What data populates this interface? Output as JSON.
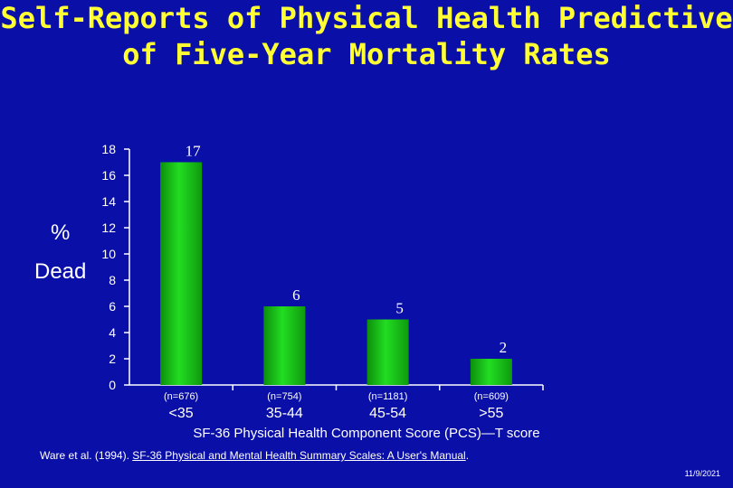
{
  "title": {
    "line1": "Self-Reports of Physical Health Predictive",
    "line2": "of Five-Year Mortality Rates"
  },
  "y_axis_label": {
    "line1": "%",
    "line2": "Dead"
  },
  "citation": {
    "prefix": "Ware et al.  (1994).  ",
    "book": "SF-36 Physical and Mental Health Summary Scales: A User's Manual",
    "suffix": "."
  },
  "date": "11/9/2021",
  "colors": {
    "background": "#0a0fa8",
    "title": "#ffff33",
    "bar": "#22dd22",
    "text": "#ffffff"
  },
  "chart_data": {
    "type": "bar",
    "title": "Self-Reports of Physical Health Predictive of Five-Year Mortality Rates",
    "xlabel": "SF-36 Physical Health Component Score (PCS)—T score",
    "ylabel": "% Dead",
    "ylim": [
      0,
      18
    ],
    "yticks": [
      0,
      2,
      4,
      6,
      8,
      10,
      12,
      14,
      16,
      18
    ],
    "grid": false,
    "categories": [
      "<35",
      "35-44",
      "45-54",
      ">55"
    ],
    "sample_sizes": [
      "(n=676)",
      "(n=754)",
      "(n=1181)",
      "(n=609)"
    ],
    "values": [
      17,
      6,
      5,
      2
    ],
    "data_labels": [
      "17",
      "6",
      "5",
      "2"
    ]
  }
}
